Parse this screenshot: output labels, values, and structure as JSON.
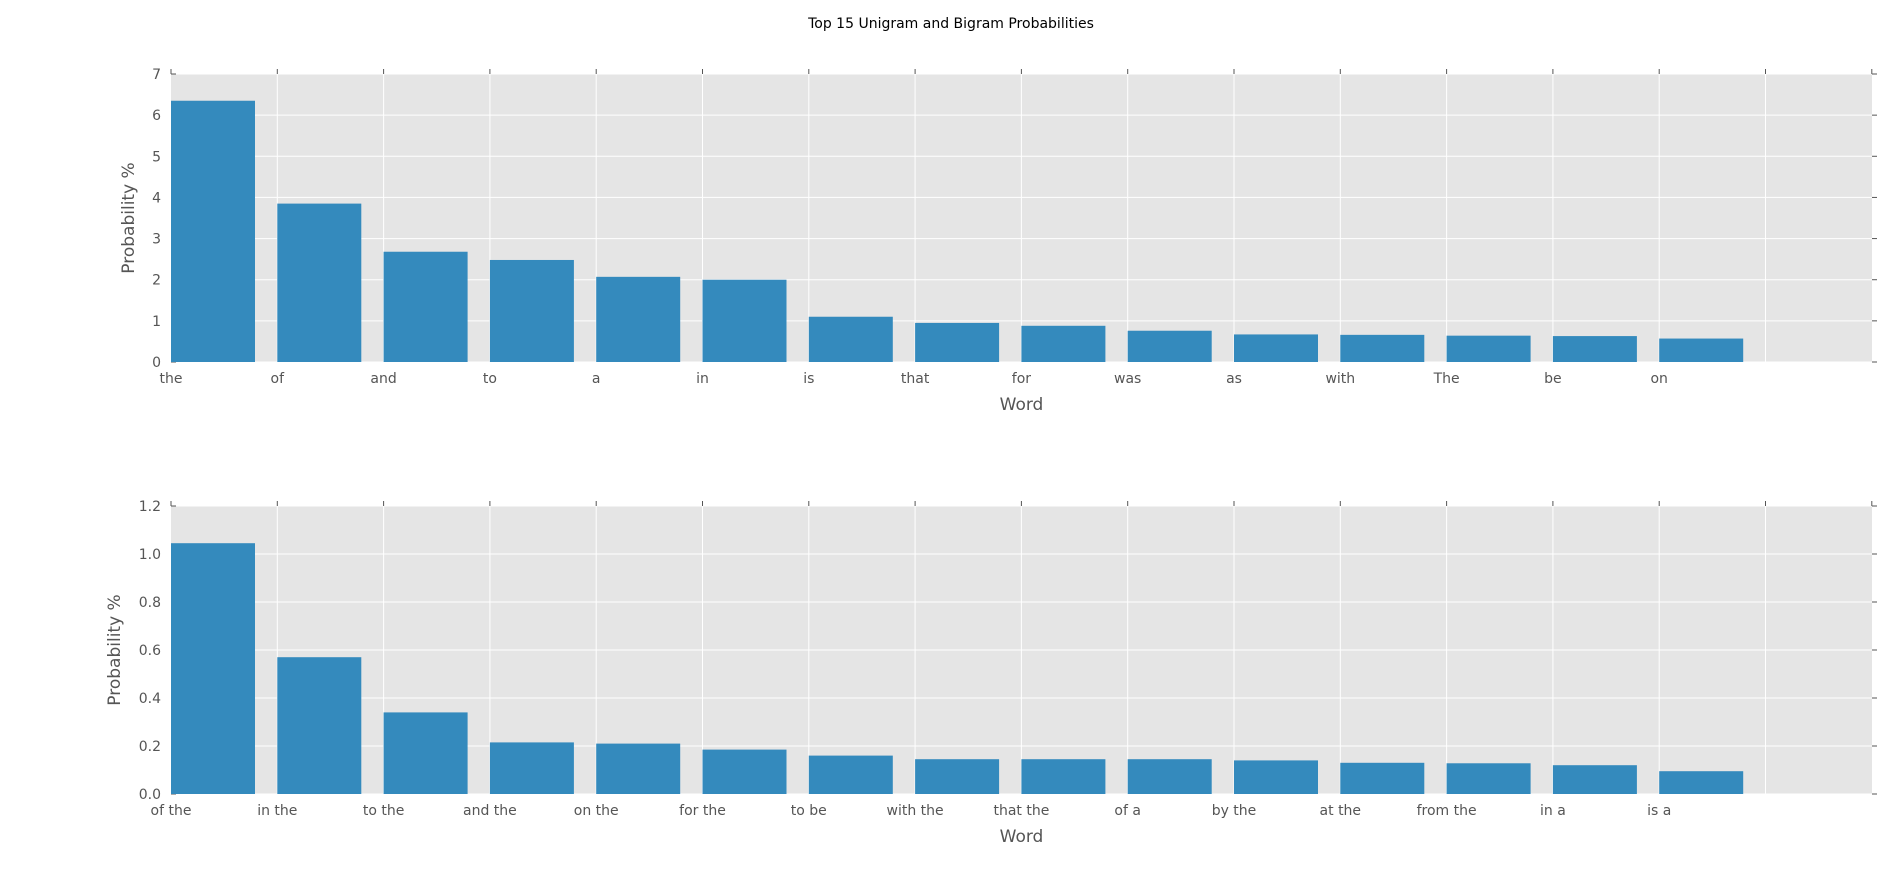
{
  "figure": {
    "title": "Top 15 Unigram and Bigram Probabilities"
  },
  "colors": {
    "bar": "#348abd",
    "plot_background": "#e5e5e5",
    "grid": "#ffffff",
    "text": "#555555"
  },
  "chart_data": [
    {
      "type": "bar",
      "title": "",
      "xlabel": "Word",
      "ylabel": "Probability %",
      "categories": [
        "the",
        "of",
        "and",
        "to",
        "a",
        "in",
        "is",
        "that",
        "for",
        "was",
        "as",
        "with",
        "The",
        "be",
        "on"
      ],
      "values": [
        6.35,
        3.85,
        2.68,
        2.48,
        2.07,
        2.0,
        1.1,
        0.95,
        0.88,
        0.76,
        0.67,
        0.66,
        0.64,
        0.63,
        0.57
      ],
      "ylim": [
        0,
        7
      ],
      "yticks": [
        "0",
        "1",
        "2",
        "3",
        "4",
        "5",
        "6",
        "7"
      ],
      "grid": true,
      "legend": "none"
    },
    {
      "type": "bar",
      "title": "",
      "xlabel": "Word",
      "ylabel": "Probability %",
      "categories": [
        "of the",
        "in the",
        "to the",
        "and the",
        "on the",
        "for the",
        "to be",
        "with the",
        "that the",
        "of a",
        "by the",
        "at the",
        "from the",
        "in a",
        "is a"
      ],
      "values": [
        1.045,
        0.57,
        0.34,
        0.215,
        0.21,
        0.185,
        0.16,
        0.145,
        0.145,
        0.145,
        0.14,
        0.13,
        0.128,
        0.12,
        0.095
      ],
      "ylim": [
        0,
        1.2
      ],
      "yticks": [
        "0.0",
        "0.2",
        "0.4",
        "0.6",
        "0.8",
        "1.0",
        "1.2"
      ],
      "grid": true,
      "legend": "none"
    }
  ]
}
